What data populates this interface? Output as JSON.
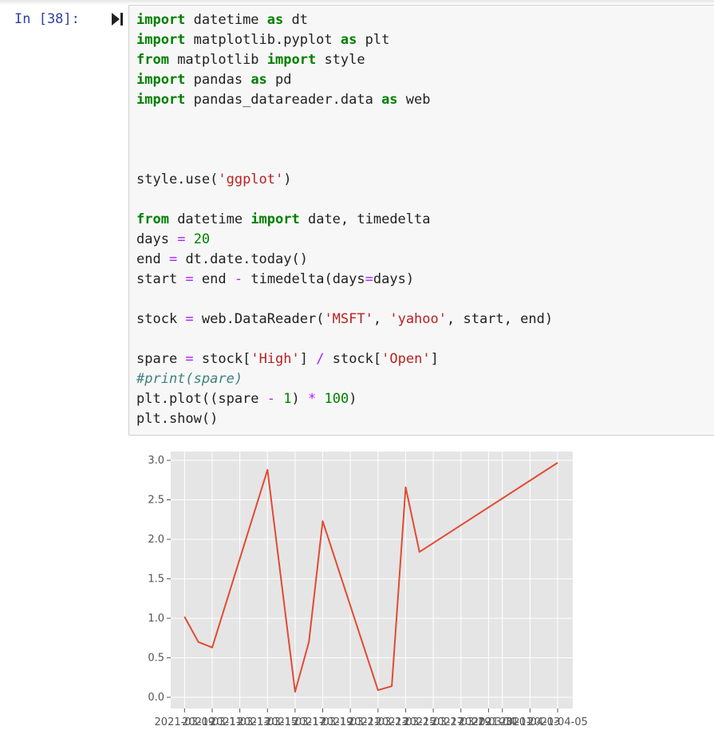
{
  "cell": {
    "prompt": "In [38]:",
    "run_icon": "run-cell-icon",
    "code_lines": [
      [
        {
          "t": "kw",
          "v": "import"
        },
        {
          "t": "p",
          "v": " datetime "
        },
        {
          "t": "kw",
          "v": "as"
        },
        {
          "t": "p",
          "v": " dt"
        }
      ],
      [
        {
          "t": "kw",
          "v": "import"
        },
        {
          "t": "p",
          "v": " matplotlib.pyplot "
        },
        {
          "t": "kw",
          "v": "as"
        },
        {
          "t": "p",
          "v": " plt"
        }
      ],
      [
        {
          "t": "kw",
          "v": "from"
        },
        {
          "t": "p",
          "v": " matplotlib "
        },
        {
          "t": "kw",
          "v": "import"
        },
        {
          "t": "p",
          "v": " style"
        }
      ],
      [
        {
          "t": "kw",
          "v": "import"
        },
        {
          "t": "p",
          "v": " pandas "
        },
        {
          "t": "kw",
          "v": "as"
        },
        {
          "t": "p",
          "v": " pd"
        }
      ],
      [
        {
          "t": "kw",
          "v": "import"
        },
        {
          "t": "p",
          "v": " pandas_datareader.data "
        },
        {
          "t": "kw",
          "v": "as"
        },
        {
          "t": "p",
          "v": " web"
        }
      ],
      [],
      [],
      [],
      [
        {
          "t": "p",
          "v": "style.use("
        },
        {
          "t": "str",
          "v": "'ggplot'"
        },
        {
          "t": "p",
          "v": ")"
        }
      ],
      [],
      [
        {
          "t": "kw",
          "v": "from"
        },
        {
          "t": "p",
          "v": " datetime "
        },
        {
          "t": "kw",
          "v": "import"
        },
        {
          "t": "p",
          "v": " date, timedelta"
        }
      ],
      [
        {
          "t": "p",
          "v": "days "
        },
        {
          "t": "op",
          "v": "="
        },
        {
          "t": "p",
          "v": " "
        },
        {
          "t": "num",
          "v": "20"
        }
      ],
      [
        {
          "t": "p",
          "v": "end "
        },
        {
          "t": "op",
          "v": "="
        },
        {
          "t": "p",
          "v": " dt.date.today()"
        }
      ],
      [
        {
          "t": "p",
          "v": "start "
        },
        {
          "t": "op",
          "v": "="
        },
        {
          "t": "p",
          "v": " end "
        },
        {
          "t": "op",
          "v": "-"
        },
        {
          "t": "p",
          "v": " timedelta(days"
        },
        {
          "t": "op",
          "v": "="
        },
        {
          "t": "p",
          "v": "days)"
        }
      ],
      [],
      [
        {
          "t": "p",
          "v": "stock "
        },
        {
          "t": "op",
          "v": "="
        },
        {
          "t": "p",
          "v": " web.DataReader("
        },
        {
          "t": "str",
          "v": "'MSFT'"
        },
        {
          "t": "p",
          "v": ", "
        },
        {
          "t": "str",
          "v": "'yahoo'"
        },
        {
          "t": "p",
          "v": ", start, end)"
        }
      ],
      [],
      [
        {
          "t": "p",
          "v": "spare "
        },
        {
          "t": "op",
          "v": "="
        },
        {
          "t": "p",
          "v": " stock["
        },
        {
          "t": "str",
          "v": "'High'"
        },
        {
          "t": "p",
          "v": "] "
        },
        {
          "t": "op",
          "v": "/"
        },
        {
          "t": "p",
          "v": " stock["
        },
        {
          "t": "str",
          "v": "'Open'"
        },
        {
          "t": "p",
          "v": "]"
        }
      ],
      [
        {
          "t": "cm",
          "v": "#print(spare)"
        }
      ],
      [
        {
          "t": "p",
          "v": "plt.plot((spare "
        },
        {
          "t": "op",
          "v": "-"
        },
        {
          "t": "p",
          "v": " "
        },
        {
          "t": "num",
          "v": "1"
        },
        {
          "t": "p",
          "v": ") "
        },
        {
          "t": "op",
          "v": "*"
        },
        {
          "t": "p",
          "v": " "
        },
        {
          "t": "num",
          "v": "100"
        },
        {
          "t": "p",
          "v": ")"
        }
      ],
      [
        {
          "t": "p",
          "v": "plt.show()"
        }
      ]
    ]
  },
  "chart_data": {
    "type": "line",
    "title": "",
    "xlabel": "",
    "ylabel": "",
    "ylim": [
      0.0,
      3.0
    ],
    "yticks": [
      "0.0",
      "0.5",
      "1.0",
      "1.5",
      "2.0",
      "2.5",
      "3.0"
    ],
    "xlim": [
      "2021-03-08",
      "2021-04-05"
    ],
    "xticks": [
      "2021-03-09",
      "2021-03-11",
      "2021-03-13",
      "2021-03-15",
      "2021-03-17",
      "2021-03-19",
      "2021-03-21",
      "2021-03-23",
      "2021-03-25",
      "2021-03-27",
      "2021-03-29",
      "2021-03-31",
      "2021-04-01",
      "2021-04-03",
      "2021-04-05"
    ],
    "grid": true,
    "line_color": "#e24a33",
    "background": "#e5e5e5",
    "series": [
      {
        "x": [
          "2021-03-09",
          "2021-03-10",
          "2021-03-11",
          "2021-03-15",
          "2021-03-17",
          "2021-03-18",
          "2021-03-19",
          "2021-03-23",
          "2021-03-24",
          "2021-03-25",
          "2021-03-26",
          "2021-04-05"
        ],
        "values": [
          1.02,
          0.7,
          0.63,
          2.88,
          0.07,
          0.7,
          2.23,
          0.09,
          0.14,
          2.66,
          1.84,
          2.97
        ]
      }
    ]
  }
}
